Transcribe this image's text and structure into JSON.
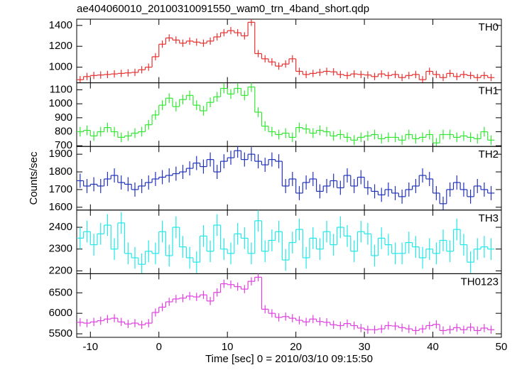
{
  "title": "ae404060010_20100310091550_wam0_trn_4band_short.qdp",
  "ylabel": "Counts/sec",
  "xlabel": "Time [sec] 0 = 2010/03/10 09:15:50",
  "chart_data": [
    {
      "type": "step",
      "label": "TH0",
      "color": "#e8302f",
      "error": 35,
      "x": [
        -11.5,
        -10.5,
        -9.5,
        -8.5,
        -7.5,
        -6.5,
        -5.5,
        -4.5,
        -3.5,
        -2.5,
        -1.5,
        -0.5,
        0.5,
        1.5,
        2.5,
        3.5,
        4.5,
        5.5,
        6.5,
        7.5,
        8.5,
        9.5,
        10.5,
        11.5,
        12.5,
        13.5,
        14.5,
        15.5,
        16.5,
        17.5,
        18.5,
        19.5,
        20.5,
        21.5,
        22.5,
        23.5,
        24.5,
        25.5,
        26.5,
        27.5,
        28.5,
        29.5,
        30.5,
        31.5,
        32.5,
        33.5,
        34.5,
        35.5,
        36.5,
        37.5,
        38.5,
        39.5,
        40.5,
        41.5,
        42.5,
        43.5,
        44.5,
        45.5,
        46.5,
        47.5,
        48.5
      ],
      "values": [
        880,
        910,
        920,
        925,
        930,
        935,
        940,
        945,
        950,
        975,
        1000,
        1100,
        1220,
        1280,
        1260,
        1230,
        1250,
        1240,
        1230,
        1250,
        1290,
        1330,
        1350,
        1330,
        1300,
        1430,
        1130,
        1080,
        1050,
        1010,
        1030,
        1080,
        960,
        930,
        940,
        950,
        960,
        955,
        930,
        920,
        935,
        930,
        925,
        910,
        935,
        920,
        930,
        900,
        920,
        930,
        880,
        960,
        930,
        900,
        940,
        910,
        930,
        920,
        900,
        920,
        900
      ],
      "xlim": [
        -12,
        50
      ],
      "ylim": [
        850,
        1460
      ],
      "yticks": [
        1000,
        1200,
        1400
      ]
    },
    {
      "type": "step",
      "label": "TH1",
      "color": "#33e833",
      "error": 35,
      "x": [
        -11.5,
        -10.5,
        -9.5,
        -8.5,
        -7.5,
        -6.5,
        -5.5,
        -4.5,
        -3.5,
        -2.5,
        -1.5,
        -0.5,
        0.5,
        1.5,
        2.5,
        3.5,
        4.5,
        5.5,
        6.5,
        7.5,
        8.5,
        9.5,
        10.5,
        11.5,
        12.5,
        13.5,
        14.5,
        15.5,
        16.5,
        17.5,
        18.5,
        19.5,
        20.5,
        21.5,
        22.5,
        23.5,
        24.5,
        25.5,
        26.5,
        27.5,
        28.5,
        29.5,
        30.5,
        31.5,
        32.5,
        33.5,
        34.5,
        35.5,
        36.5,
        37.5,
        38.5,
        39.5,
        40.5,
        41.5,
        42.5,
        43.5,
        44.5,
        45.5,
        46.5,
        47.5,
        48.5
      ],
      "values": [
        800,
        810,
        770,
        800,
        830,
        800,
        760,
        770,
        790,
        800,
        850,
        920,
        990,
        1040,
        980,
        1030,
        1060,
        990,
        950,
        1010,
        1050,
        1110,
        1070,
        1110,
        1060,
        1120,
        940,
        840,
        800,
        780,
        790,
        760,
        830,
        820,
        790,
        810,
        800,
        770,
        780,
        760,
        740,
        760,
        770,
        780,
        750,
        760,
        760,
        740,
        780,
        750,
        760,
        780,
        720,
        780,
        780,
        760,
        770,
        760,
        750,
        800,
        740
      ],
      "xlim": [
        -12,
        50
      ],
      "ylim": [
        695,
        1150
      ],
      "yticks": [
        700,
        800,
        900,
        1000,
        1100
      ]
    },
    {
      "type": "step",
      "label": "TH2",
      "color": "#2233bb",
      "error": 40,
      "x": [
        -11.5,
        -10.5,
        -9.5,
        -8.5,
        -7.5,
        -6.5,
        -5.5,
        -4.5,
        -3.5,
        -2.5,
        -1.5,
        -0.5,
        0.5,
        1.5,
        2.5,
        3.5,
        4.5,
        5.5,
        6.5,
        7.5,
        8.5,
        9.5,
        10.5,
        11.5,
        12.5,
        13.5,
        14.5,
        15.5,
        16.5,
        17.5,
        18.5,
        19.5,
        20.5,
        21.5,
        22.5,
        23.5,
        24.5,
        25.5,
        26.5,
        27.5,
        28.5,
        29.5,
        30.5,
        31.5,
        32.5,
        33.5,
        34.5,
        35.5,
        36.5,
        37.5,
        38.5,
        39.5,
        40.5,
        41.5,
        42.5,
        43.5,
        44.5,
        45.5,
        46.5,
        47.5,
        48.5
      ],
      "values": [
        1750,
        1720,
        1730,
        1720,
        1760,
        1780,
        1740,
        1730,
        1700,
        1720,
        1740,
        1760,
        1770,
        1780,
        1790,
        1800,
        1820,
        1850,
        1830,
        1870,
        1800,
        1860,
        1880,
        1920,
        1870,
        1900,
        1860,
        1840,
        1870,
        1860,
        1720,
        1760,
        1680,
        1740,
        1760,
        1690,
        1720,
        1750,
        1710,
        1780,
        1720,
        1770,
        1710,
        1690,
        1670,
        1700,
        1680,
        1660,
        1700,
        1720,
        1780,
        1760,
        1680,
        1620,
        1700,
        1740,
        1700,
        1660,
        1720,
        1700,
        1680
      ],
      "xlim": [
        -12,
        50
      ],
      "ylim": [
        1584,
        1944
      ],
      "yticks": [
        1600,
        1700,
        1800,
        1900
      ]
    },
    {
      "type": "step",
      "label": "TH3",
      "color": "#22e8e8",
      "error": 50,
      "x": [
        -11.5,
        -10.5,
        -9.5,
        -8.5,
        -7.5,
        -6.5,
        -5.5,
        -4.5,
        -3.5,
        -2.5,
        -1.5,
        -0.5,
        0.5,
        1.5,
        2.5,
        3.5,
        4.5,
        5.5,
        6.5,
        7.5,
        8.5,
        9.5,
        10.5,
        11.5,
        12.5,
        13.5,
        14.5,
        15.5,
        16.5,
        17.5,
        18.5,
        19.5,
        20.5,
        21.5,
        22.5,
        23.5,
        24.5,
        25.5,
        26.5,
        27.5,
        28.5,
        29.5,
        30.5,
        31.5,
        32.5,
        33.5,
        34.5,
        35.5,
        36.5,
        37.5,
        38.5,
        39.5,
        40.5,
        41.5,
        42.5,
        43.5,
        44.5,
        45.5,
        46.5,
        47.5,
        48.5
      ],
      "values": [
        2350,
        2380,
        2320,
        2370,
        2410,
        2300,
        2420,
        2280,
        2260,
        2230,
        2290,
        2280,
        2380,
        2270,
        2400,
        2310,
        2260,
        2240,
        2360,
        2290,
        2410,
        2300,
        2280,
        2370,
        2350,
        2280,
        2430,
        2290,
        2340,
        2380,
        2250,
        2330,
        2390,
        2260,
        2350,
        2300,
        2380,
        2320,
        2400,
        2360,
        2290,
        2380,
        2370,
        2270,
        2350,
        2320,
        2280,
        2280,
        2330,
        2310,
        2260,
        2300,
        2280,
        2340,
        2290,
        2390,
        2320,
        2240,
        2300,
        2310,
        2300
      ],
      "xlim": [
        -12,
        50
      ],
      "ylim": [
        2187,
        2479
      ],
      "yticks": [
        2200,
        2300,
        2400
      ]
    },
    {
      "type": "step",
      "label": "TH0123",
      "color": "#e040e0",
      "error": 100,
      "x": [
        -11.5,
        -10.5,
        -9.5,
        -8.5,
        -7.5,
        -6.5,
        -5.5,
        -4.5,
        -3.5,
        -2.5,
        -1.5,
        -0.5,
        0.5,
        1.5,
        2.5,
        3.5,
        4.5,
        5.5,
        6.5,
        7.5,
        8.5,
        9.5,
        10.5,
        11.5,
        12.5,
        13.5,
        14.5,
        15.5,
        16.5,
        17.5,
        18.5,
        19.5,
        20.5,
        21.5,
        22.5,
        23.5,
        24.5,
        25.5,
        26.5,
        27.5,
        28.5,
        29.5,
        30.5,
        31.5,
        32.5,
        33.5,
        34.5,
        35.5,
        36.5,
        37.5,
        38.5,
        39.5,
        40.5,
        41.5,
        42.5,
        43.5,
        44.5,
        45.5,
        46.5,
        47.5,
        48.5
      ],
      "values": [
        5780,
        5760,
        5790,
        5820,
        5860,
        5880,
        5790,
        5740,
        5760,
        5720,
        5760,
        6020,
        6150,
        6280,
        6350,
        6370,
        6420,
        6400,
        6450,
        6300,
        6510,
        6720,
        6700,
        6650,
        6590,
        6780,
        6880,
        6100,
        6000,
        5900,
        5920,
        5880,
        5830,
        5790,
        5860,
        5800,
        5780,
        5720,
        5700,
        5750,
        5700,
        5640,
        5600,
        5600,
        5620,
        5700,
        5690,
        5650,
        5620,
        5580,
        5620,
        5700,
        5730,
        5580,
        5600,
        5650,
        5600,
        5660,
        5580,
        5640,
        5600
      ],
      "xlim": [
        -12,
        50
      ],
      "ylim": [
        5414,
        6966
      ],
      "yticks": [
        5500,
        6000,
        6500
      ],
      "xticks": [
        -10,
        0,
        10,
        20,
        30,
        40,
        50
      ]
    }
  ]
}
